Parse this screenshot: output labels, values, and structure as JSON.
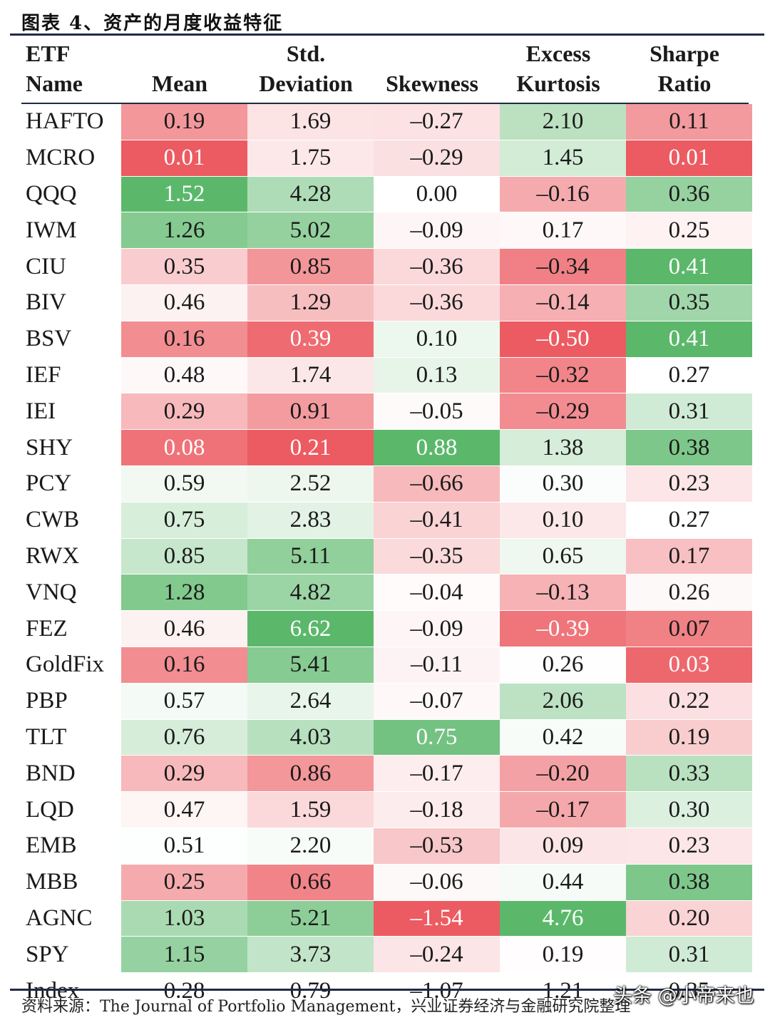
{
  "figure_title": "图表 4、资产的月度收益特征",
  "source_note": "资料来源：The Journal of Portfolio Management，兴业证券经济与金融研究院整理",
  "watermark": "头条 @小帝来也",
  "colors": {
    "high": "#5bb86b",
    "low": "#ec5b61",
    "mid": "#ffffff"
  },
  "chart_data": {
    "type": "table",
    "columns": [
      "ETF Name",
      "Mean",
      "Std. Deviation",
      "Skewness",
      "Excess Kurtosis",
      "Sharpe Ratio"
    ],
    "header_lines": [
      [
        "ETF",
        "Name"
      ],
      [
        "",
        "Mean"
      ],
      [
        "Std.",
        "Deviation"
      ],
      [
        "",
        "Skewness"
      ],
      [
        "Excess",
        "Kurtosis"
      ],
      [
        "Sharpe",
        "Ratio"
      ]
    ],
    "rows": [
      [
        "HAFTO",
        "0.19",
        "1.69",
        "–0.27",
        "2.10",
        "0.11"
      ],
      [
        "MCRO",
        "0.01",
        "1.75",
        "–0.29",
        "1.45",
        "0.01"
      ],
      [
        "QQQ",
        "1.52",
        "4.28",
        "0.00",
        "–0.16",
        "0.36"
      ],
      [
        "IWM",
        "1.26",
        "5.02",
        "–0.09",
        "0.17",
        "0.25"
      ],
      [
        "CIU",
        "0.35",
        "0.85",
        "–0.36",
        "–0.34",
        "0.41"
      ],
      [
        "BIV",
        "0.46",
        "1.29",
        "–0.36",
        "–0.14",
        "0.35"
      ],
      [
        "BSV",
        "0.16",
        "0.39",
        "0.10",
        "–0.50",
        "0.41"
      ],
      [
        "IEF",
        "0.48",
        "1.74",
        "0.13",
        "–0.32",
        "0.27"
      ],
      [
        "IEI",
        "0.29",
        "0.91",
        "–0.05",
        "–0.29",
        "0.31"
      ],
      [
        "SHY",
        "0.08",
        "0.21",
        "0.88",
        "1.38",
        "0.38"
      ],
      [
        "PCY",
        "0.59",
        "2.52",
        "–0.66",
        "0.30",
        "0.23"
      ],
      [
        "CWB",
        "0.75",
        "2.83",
        "–0.41",
        "0.10",
        "0.27"
      ],
      [
        "RWX",
        "0.85",
        "5.11",
        "–0.35",
        "0.65",
        "0.17"
      ],
      [
        "VNQ",
        "1.28",
        "4.82",
        "–0.04",
        "–0.13",
        "0.26"
      ],
      [
        "FEZ",
        "0.46",
        "6.62",
        "–0.09",
        "–0.39",
        "0.07"
      ],
      [
        "GoldFix",
        "0.16",
        "5.41",
        "–0.11",
        "0.26",
        "0.03"
      ],
      [
        "PBP",
        "0.57",
        "2.64",
        "–0.07",
        "2.06",
        "0.22"
      ],
      [
        "TLT",
        "0.76",
        "4.03",
        "0.75",
        "0.42",
        "0.19"
      ],
      [
        "BND",
        "0.29",
        "0.86",
        "–0.17",
        "–0.20",
        "0.33"
      ],
      [
        "LQD",
        "0.47",
        "1.59",
        "–0.18",
        "–0.17",
        "0.30"
      ],
      [
        "EMB",
        "0.51",
        "2.20",
        "–0.53",
        "0.09",
        "0.23"
      ],
      [
        "MBB",
        "0.25",
        "0.66",
        "–0.06",
        "0.44",
        "0.38"
      ],
      [
        "AGNC",
        "1.03",
        "5.21",
        "–1.54",
        "4.76",
        "0.20"
      ],
      [
        "SPY",
        "1.15",
        "3.73",
        "–0.24",
        "0.19",
        "0.31"
      ],
      [
        "Index",
        "0.28",
        "0.79",
        "–1.07",
        "1.21",
        "0.35"
      ]
    ],
    "colored_rows": 24,
    "column_color_mid": [
      0.5,
      2.0,
      0.0,
      0.2,
      0.27
    ]
  }
}
